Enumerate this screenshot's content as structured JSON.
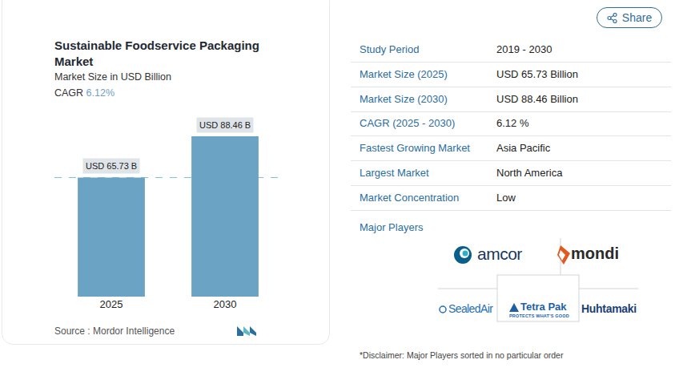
{
  "chart_data": {
    "type": "bar",
    "title": "Sustainable Foodservice Packaging Market",
    "subtitle": "Market Size in USD Billion",
    "cagr_label": "CAGR",
    "cagr_value": "6.12%",
    "source": "Source : Mordor Intelligence",
    "categories": [
      "2025",
      "2030"
    ],
    "values": [
      65.73,
      88.46
    ],
    "value_labels": [
      "USD 65.73 B",
      "USD 88.46 B"
    ],
    "data_labels": true,
    "color": "#6aa3c4",
    "ylim": [
      0,
      100
    ],
    "tick_labels": "x",
    "grid": false
  },
  "page": {
    "share": "Share",
    "table": [
      [
        "Study Period",
        "2019 - 2030"
      ],
      [
        "Market Size (2025)",
        "USD 65.73 Billion"
      ],
      [
        "Market Size (2030)",
        "USD 88.46 Billion"
      ],
      [
        "CAGR (2025 - 2030)",
        "6.12 %"
      ],
      [
        "Fastest Growing Market",
        "Asia Pacific"
      ],
      [
        "Largest Market",
        "North America"
      ],
      [
        "Market Concentration",
        "Low"
      ]
    ],
    "major_players_title": "Major Players",
    "major_players": [
      {
        "name": "amcor"
      },
      {
        "name": "mondi"
      },
      {
        "name": "SealedAir"
      },
      {
        "name": "Tetra Pak",
        "tagline": "PROTECTS WHAT'S GOOD"
      },
      {
        "name": "Huhtamaki"
      }
    ],
    "disclaimer": "*Disclaimer: Major Players sorted in no particular order"
  }
}
